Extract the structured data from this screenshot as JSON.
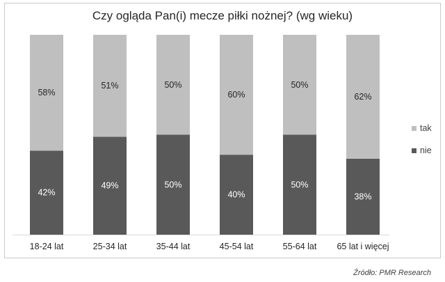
{
  "chart_data": {
    "type": "bar",
    "stacked": true,
    "percent": true,
    "title": "Czy ogląda Pan(i) mecze piłki nożnej? (wg wieku)",
    "categories": [
      "18-24 lat",
      "25-34 lat",
      "35-44 lat",
      "45-54 lat",
      "55-64 lat",
      "65 lat i więcej"
    ],
    "series": [
      {
        "name": "nie",
        "values": [
          42,
          49,
          50,
          40,
          50,
          38
        ],
        "labels": [
          "42%",
          "49%",
          "50%",
          "40%",
          "50%",
          "38%"
        ],
        "color": "#595959",
        "label_color": "#ffffff"
      },
      {
        "name": "tak",
        "values": [
          58,
          51,
          50,
          60,
          50,
          62
        ],
        "labels": [
          "58%",
          "51%",
          "50%",
          "60%",
          "50%",
          "62%"
        ],
        "color": "#bfbfbf",
        "label_color": "#262626"
      }
    ],
    "legend_order": [
      "tak",
      "nie"
    ],
    "legend_position": "right",
    "ylim": [
      0,
      100
    ],
    "grid": false
  },
  "source": "Źródło: PMR Research"
}
